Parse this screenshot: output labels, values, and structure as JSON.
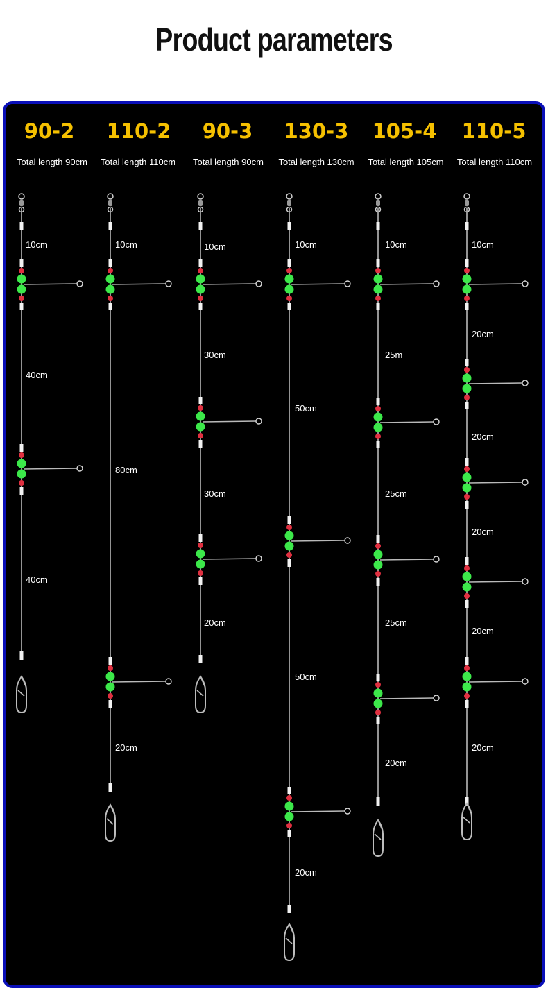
{
  "title": "Product parameters",
  "colors": {
    "code": "#f5c000",
    "border": "#0a0fb8",
    "bead_green": "#3ce84a",
    "bead_red": "#e03040",
    "line": "#b9b9b9"
  },
  "rigs": [
    {
      "code": "90-2",
      "total": "Total length 90cm",
      "segments": [
        "10cm",
        "40cm",
        "40cm"
      ]
    },
    {
      "code": "110-2",
      "total": "Total length 110cm",
      "segments": [
        "10cm",
        "80cm",
        "20cm"
      ]
    },
    {
      "code": "90-3",
      "total": "Total length 90cm",
      "segments": [
        "10cm",
        "30cm",
        "30cm",
        "20cm"
      ]
    },
    {
      "code": "130-3",
      "total": "Total length 130cm",
      "segments": [
        "10cm",
        "50cm",
        "50cm",
        "20cm"
      ]
    },
    {
      "code": "105-4",
      "total": "Total length 105cm",
      "segments": [
        "10cm",
        "25m",
        "25cm",
        "25cm",
        "20cm"
      ]
    },
    {
      "code": "110-5",
      "total": "Total length 110cm",
      "segments": [
        "10cm",
        "20cm",
        "20cm",
        "20cm",
        "20cm",
        "20cm"
      ]
    }
  ]
}
